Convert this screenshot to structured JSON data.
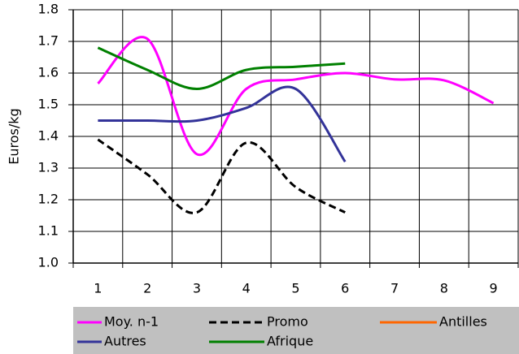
{
  "chart_data": {
    "type": "line",
    "y_label": "Euros/kg",
    "categories": [
      "1",
      "2",
      "3",
      "4",
      "5",
      "6",
      "7",
      "8",
      "9"
    ],
    "ylim": [
      1.0,
      1.8
    ],
    "yticks": [
      {
        "value": 1.0,
        "label": "1.0"
      },
      1.1,
      1.2,
      1.3,
      1.4,
      1.5,
      1.6,
      1.7,
      1.8
    ],
    "grid": true,
    "smooth": true,
    "legend": "bottom",
    "series": [
      {
        "name": "Moy. n-1",
        "color": "#ff00ff",
        "values": [
          1.567,
          1.708,
          1.344,
          1.55,
          1.58,
          1.6,
          1.58,
          1.577,
          1.505
        ]
      },
      {
        "name": "Promo",
        "color": "#000000",
        "line_style": "dashed",
        "values": [
          1.39,
          1.28,
          1.16,
          1.38,
          1.24,
          1.16,
          null,
          null,
          null
        ]
      },
      {
        "name": "Antilles",
        "color": "#ff6600",
        "values": [
          null,
          null,
          null,
          null,
          null,
          null,
          null,
          null,
          null
        ]
      },
      {
        "name": "Autres",
        "color": "#333399",
        "values": [
          1.45,
          1.45,
          1.45,
          1.49,
          1.55,
          1.32,
          null,
          null,
          null
        ]
      },
      {
        "name": "Afrique",
        "color": "#008000",
        "values": [
          1.68,
          1.61,
          1.55,
          1.61,
          1.62,
          1.63,
          null,
          null,
          null
        ]
      }
    ]
  }
}
